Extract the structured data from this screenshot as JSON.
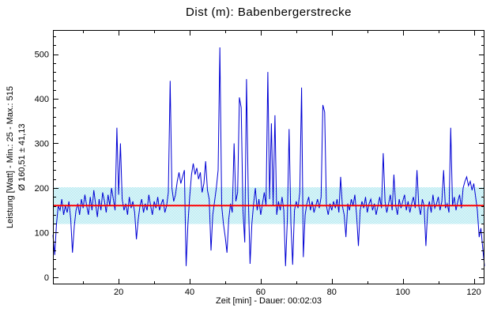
{
  "figure": {
    "title": "Dist (m): Babenbergerstrecke"
  },
  "chart_data": {
    "type": "line",
    "title": "Dist (m): Babenbergerstrecke",
    "xlabel": "Zeit [min] - Dauer: 00:02:03",
    "ylabel_line1": "Leistung [Watt] - Min.: 25 - Max.: 515",
    "ylabel_line2": "Ø 160,51 ± 41,13",
    "stats": {
      "min": 25,
      "max": 515,
      "mean": 160.51,
      "std": 41.13,
      "duration": "00:02:03"
    },
    "xlim": [
      1.5,
      123
    ],
    "ylim": [
      -16,
      554
    ],
    "x_major_ticks": [
      20,
      40,
      60,
      80,
      100,
      120
    ],
    "x_minor_ticks": [
      10,
      30,
      50,
      70,
      90,
      110
    ],
    "y_major_ticks": [
      0,
      100,
      200,
      300,
      400,
      500
    ],
    "y_minor_ticks": [
      20,
      40,
      60,
      80,
      120,
      140,
      160,
      180,
      220,
      240,
      260,
      280,
      320,
      340,
      360,
      380,
      420,
      440,
      460,
      480,
      520,
      540
    ],
    "grid": false,
    "legend": "none",
    "mean_line": 160.51,
    "band": [
      119.38,
      201.64
    ],
    "colors": {
      "line": "#0000d4",
      "mean_line": "#ff0000",
      "band": "#9be2ec",
      "axis": "#000000",
      "background": "#ffffff"
    },
    "series_name": "Leistung [Watt]",
    "x0": 1.5,
    "dx": 0.5,
    "values": [
      95,
      50,
      120,
      160,
      150,
      175,
      140,
      160,
      145,
      170,
      130,
      55,
      115,
      150,
      165,
      140,
      175,
      155,
      185,
      160,
      140,
      180,
      150,
      195,
      165,
      135,
      175,
      150,
      190,
      170,
      145,
      185,
      160,
      200,
      175,
      150,
      335,
      185,
      300,
      175,
      150,
      165,
      140,
      180,
      155,
      170,
      145,
      85,
      130,
      160,
      175,
      145,
      165,
      150,
      185,
      160,
      140,
      170,
      155,
      180,
      150,
      165,
      175,
      145,
      160,
      190,
      440,
      200,
      170,
      185,
      215,
      235,
      210,
      225,
      240,
      25,
      120,
      180,
      230,
      255,
      230,
      245,
      220,
      235,
      190,
      210,
      260,
      195,
      175,
      60,
      140,
      170,
      200,
      240,
      515,
      160,
      120,
      90,
      55,
      130,
      165,
      145,
      300,
      170,
      190,
      403,
      380,
      150,
      78,
      444,
      180,
      30,
      120,
      165,
      200,
      150,
      175,
      140,
      165,
      190,
      160,
      460,
      175,
      345,
      160,
      363,
      140,
      170,
      150,
      180,
      150,
      25,
      130,
      332,
      120,
      28,
      150,
      170,
      155,
      190,
      425,
      45,
      140,
      165,
      180,
      150,
      170,
      145,
      160,
      175,
      155,
      180,
      386,
      370,
      160,
      140,
      165,
      150,
      170,
      155,
      175,
      145,
      225,
      160,
      140,
      90,
      165,
      150,
      175,
      160,
      185,
      140,
      70,
      150,
      170,
      155,
      180,
      145,
      165,
      175,
      150,
      165,
      140,
      160,
      180,
      155,
      278,
      170,
      145,
      165,
      185,
      150,
      230,
      160,
      140,
      175,
      155,
      170,
      185,
      150,
      170,
      145,
      165,
      180,
      155,
      240,
      160,
      140,
      175,
      160,
      70,
      150,
      170,
      145,
      185,
      155,
      165,
      180,
      150,
      170,
      240,
      155,
      165,
      145,
      335,
      160,
      180,
      150,
      170,
      185,
      155,
      200,
      215,
      225,
      205,
      215,
      195,
      210,
      180,
      150,
      90,
      110,
      65,
      25
    ]
  }
}
